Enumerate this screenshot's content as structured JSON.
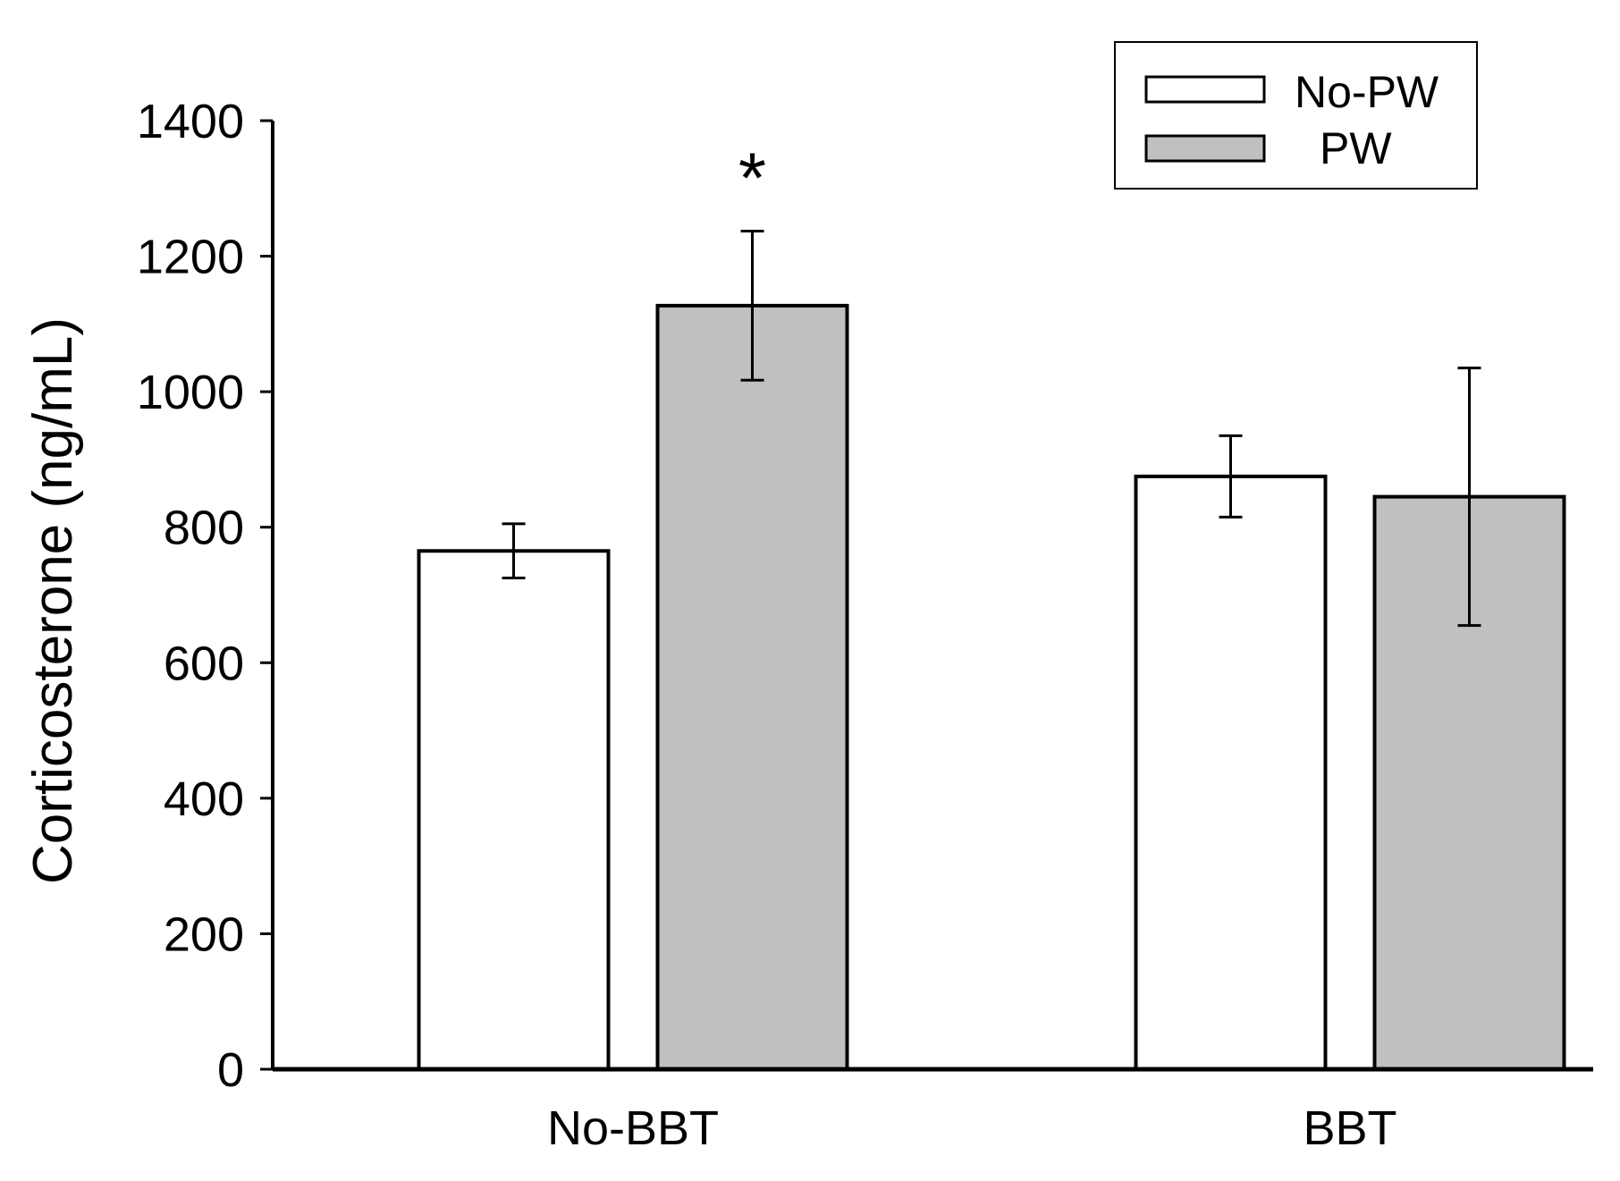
{
  "chart_data": {
    "type": "bar",
    "title": "",
    "xlabel": "",
    "ylabel": "Corticosterone (ng/mL)",
    "ylim": [
      0,
      1400
    ],
    "yticks": [
      0,
      200,
      400,
      600,
      800,
      1000,
      1200,
      1400
    ],
    "categories": [
      "No-BBT",
      "BBT"
    ],
    "series": [
      {
        "name": "No-PW",
        "color": "#ffffff",
        "values": [
          765,
          875
        ],
        "errors": [
          40,
          60
        ]
      },
      {
        "name": "PW",
        "color": "#c0c0c0",
        "values": [
          1127,
          845
        ],
        "errors": [
          110,
          190
        ]
      }
    ],
    "annotations": [
      {
        "text": "*",
        "category": "No-BBT",
        "series": "PW"
      }
    ],
    "legend": {
      "placement": "top-right"
    },
    "grid": false
  }
}
